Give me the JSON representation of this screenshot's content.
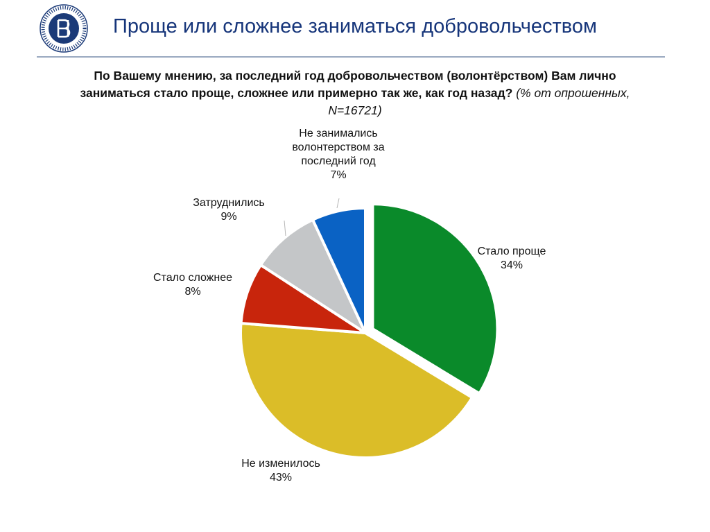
{
  "header": {
    "title": "Проще или сложнее заниматься добровольчеством"
  },
  "question": {
    "main": "По Вашему мнению, за последний год добровольчеством (волонтёрством) Вам лично заниматься стало проще, сложнее или примерно так же, как год назад?",
    "note": "(% от опрошенных, N=16721)"
  },
  "chart_data": {
    "type": "pie",
    "unit": "%",
    "start_angle_deg": 0,
    "direction": "clockwise",
    "slices": [
      {
        "label_lines": [
          "Стало проще"
        ],
        "value": 34,
        "color": "#0a8a2a",
        "exploded": true
      },
      {
        "label_lines": [
          "Не изменилось"
        ],
        "value": 43,
        "color": "#dbbd28",
        "exploded": false
      },
      {
        "label_lines": [
          "Стало сложнее"
        ],
        "value": 8,
        "color": "#c8250c",
        "exploded": false
      },
      {
        "label_lines": [
          "Затруднились"
        ],
        "value": 9,
        "color": "#c4c6c8",
        "exploded": false
      },
      {
        "label_lines": [
          "Не занимались",
          "волонтерством за",
          "последний год"
        ],
        "value": 7,
        "color": "#0a62c4",
        "exploded": false
      }
    ]
  }
}
